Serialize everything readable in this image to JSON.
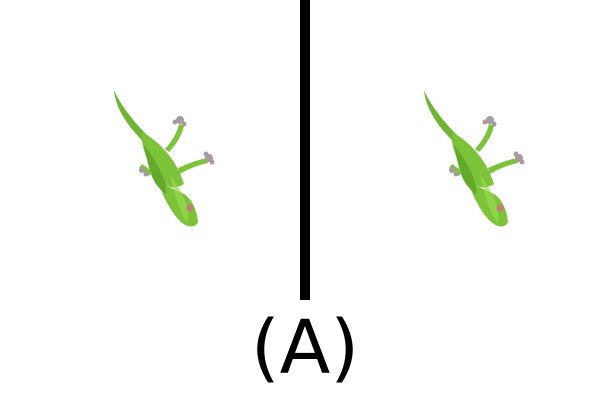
{
  "figure": {
    "caption": "(A)",
    "panels": [
      {
        "id": "left",
        "subject": "lizard-icon"
      },
      {
        "id": "right",
        "subject": "lizard-icon"
      }
    ]
  },
  "colors": {
    "lizard_body": "#7cc33a",
    "lizard_shade": "#63a92a",
    "lizard_highlight": "#98d94f",
    "lizard_toes": "#a99aa2",
    "lizard_eye": "#c77b78",
    "divider": "#000000",
    "background": "#ffffff"
  }
}
